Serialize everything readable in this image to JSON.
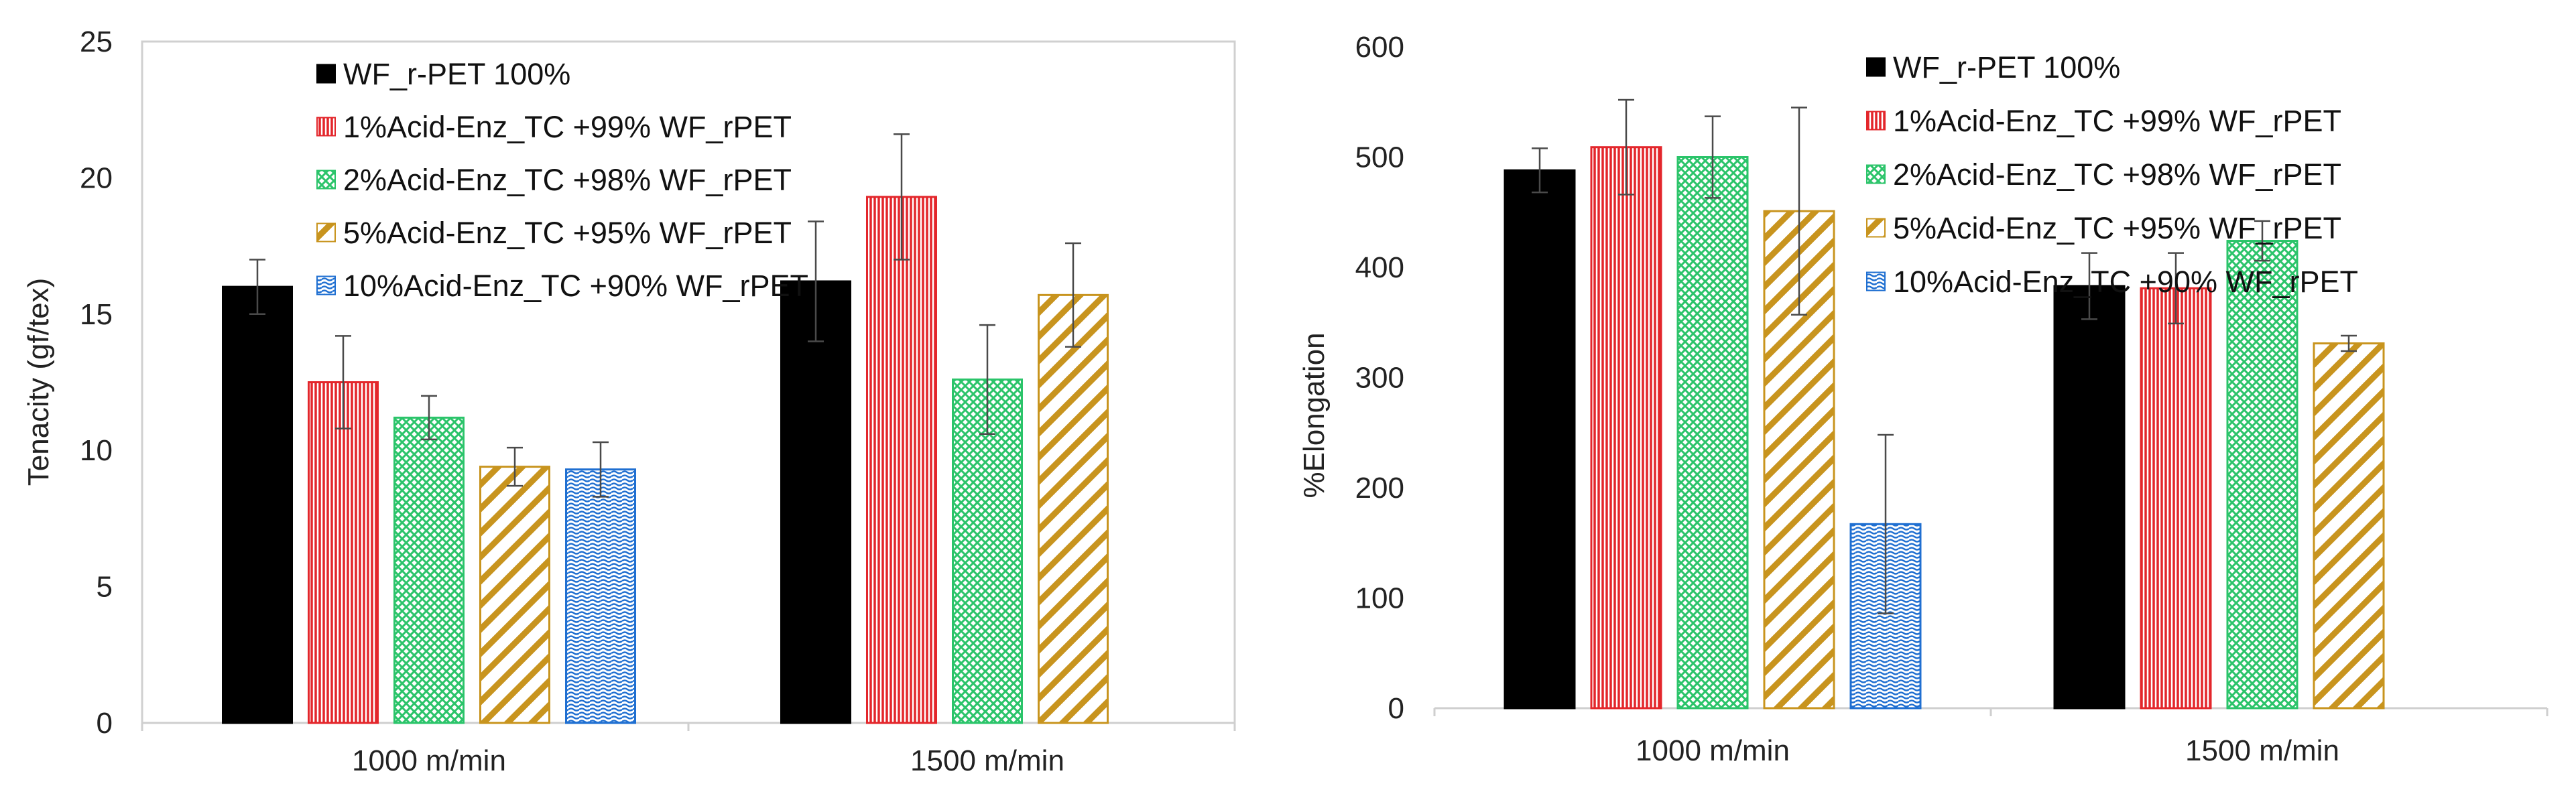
{
  "chart_data": [
    {
      "type": "bar",
      "title": "",
      "xlabel": "",
      "ylabel": "Tenacity (gf/tex)",
      "ylim": [
        0,
        25
      ],
      "yticks": [
        0,
        5,
        10,
        15,
        20,
        25
      ],
      "grid": false,
      "legend_position": "top-center",
      "categories": [
        "1000 m/min",
        "1500 m/min"
      ],
      "series": [
        {
          "name": "WF_r-PET 100%",
          "values": [
            16.0,
            16.2
          ],
          "errors": [
            1.0,
            2.2
          ],
          "color": "#000000",
          "pattern": "solid"
        },
        {
          "name": "1%Acid-Enz_TC +99% WF_rPET",
          "values": [
            12.5,
            19.3
          ],
          "errors": [
            1.7,
            2.3
          ],
          "color": "#e3262b",
          "pattern": "vertical"
        },
        {
          "name": "2%Acid-Enz_TC +98% WF_rPET",
          "values": [
            11.2,
            12.6
          ],
          "errors": [
            0.8,
            2.0
          ],
          "color": "#2bc46a",
          "pattern": "crosshatch"
        },
        {
          "name": "5%Acid-Enz_TC +95% WF_rPET",
          "values": [
            9.4,
            15.7
          ],
          "errors": [
            0.7,
            1.9
          ],
          "color": "#c8941e",
          "pattern": "diagonal"
        },
        {
          "name": "10%Acid-Enz_TC +90% WF_rPET",
          "values": [
            9.3,
            null
          ],
          "errors": [
            1.0,
            null
          ],
          "color": "#1f6fd1",
          "pattern": "wave"
        }
      ]
    },
    {
      "type": "bar",
      "title": "",
      "xlabel": "",
      "ylabel": "%Elongation",
      "ylim": [
        0,
        600
      ],
      "yticks": [
        0,
        100,
        200,
        300,
        400,
        500,
        600
      ],
      "grid": false,
      "legend_position": "top-right",
      "categories": [
        "1000 m/min",
        "1500 m/min"
      ],
      "series": [
        {
          "name": "WF_r-PET 100%",
          "values": [
            488,
            383
          ],
          "errors": [
            20,
            30
          ],
          "color": "#000000",
          "pattern": "solid"
        },
        {
          "name": "1%Acid-Enz_TC +99% WF_rPET",
          "values": [
            509,
            381
          ],
          "errors": [
            43,
            32
          ],
          "color": "#e3262b",
          "pattern": "vertical"
        },
        {
          "name": "2%Acid-Enz_TC +98% WF_rPET",
          "values": [
            500,
            424
          ],
          "errors": [
            37,
            18
          ],
          "color": "#2bc46a",
          "pattern": "crosshatch"
        },
        {
          "name": "5%Acid-Enz_TC +95% WF_rPET",
          "values": [
            451,
            331
          ],
          "errors": [
            94,
            7
          ],
          "color": "#c8941e",
          "pattern": "diagonal"
        },
        {
          "name": "10%Acid-Enz_TC +90% WF_rPET",
          "values": [
            167,
            null
          ],
          "errors": [
            81,
            null
          ],
          "color": "#1f6fd1",
          "pattern": "wave"
        }
      ]
    }
  ]
}
